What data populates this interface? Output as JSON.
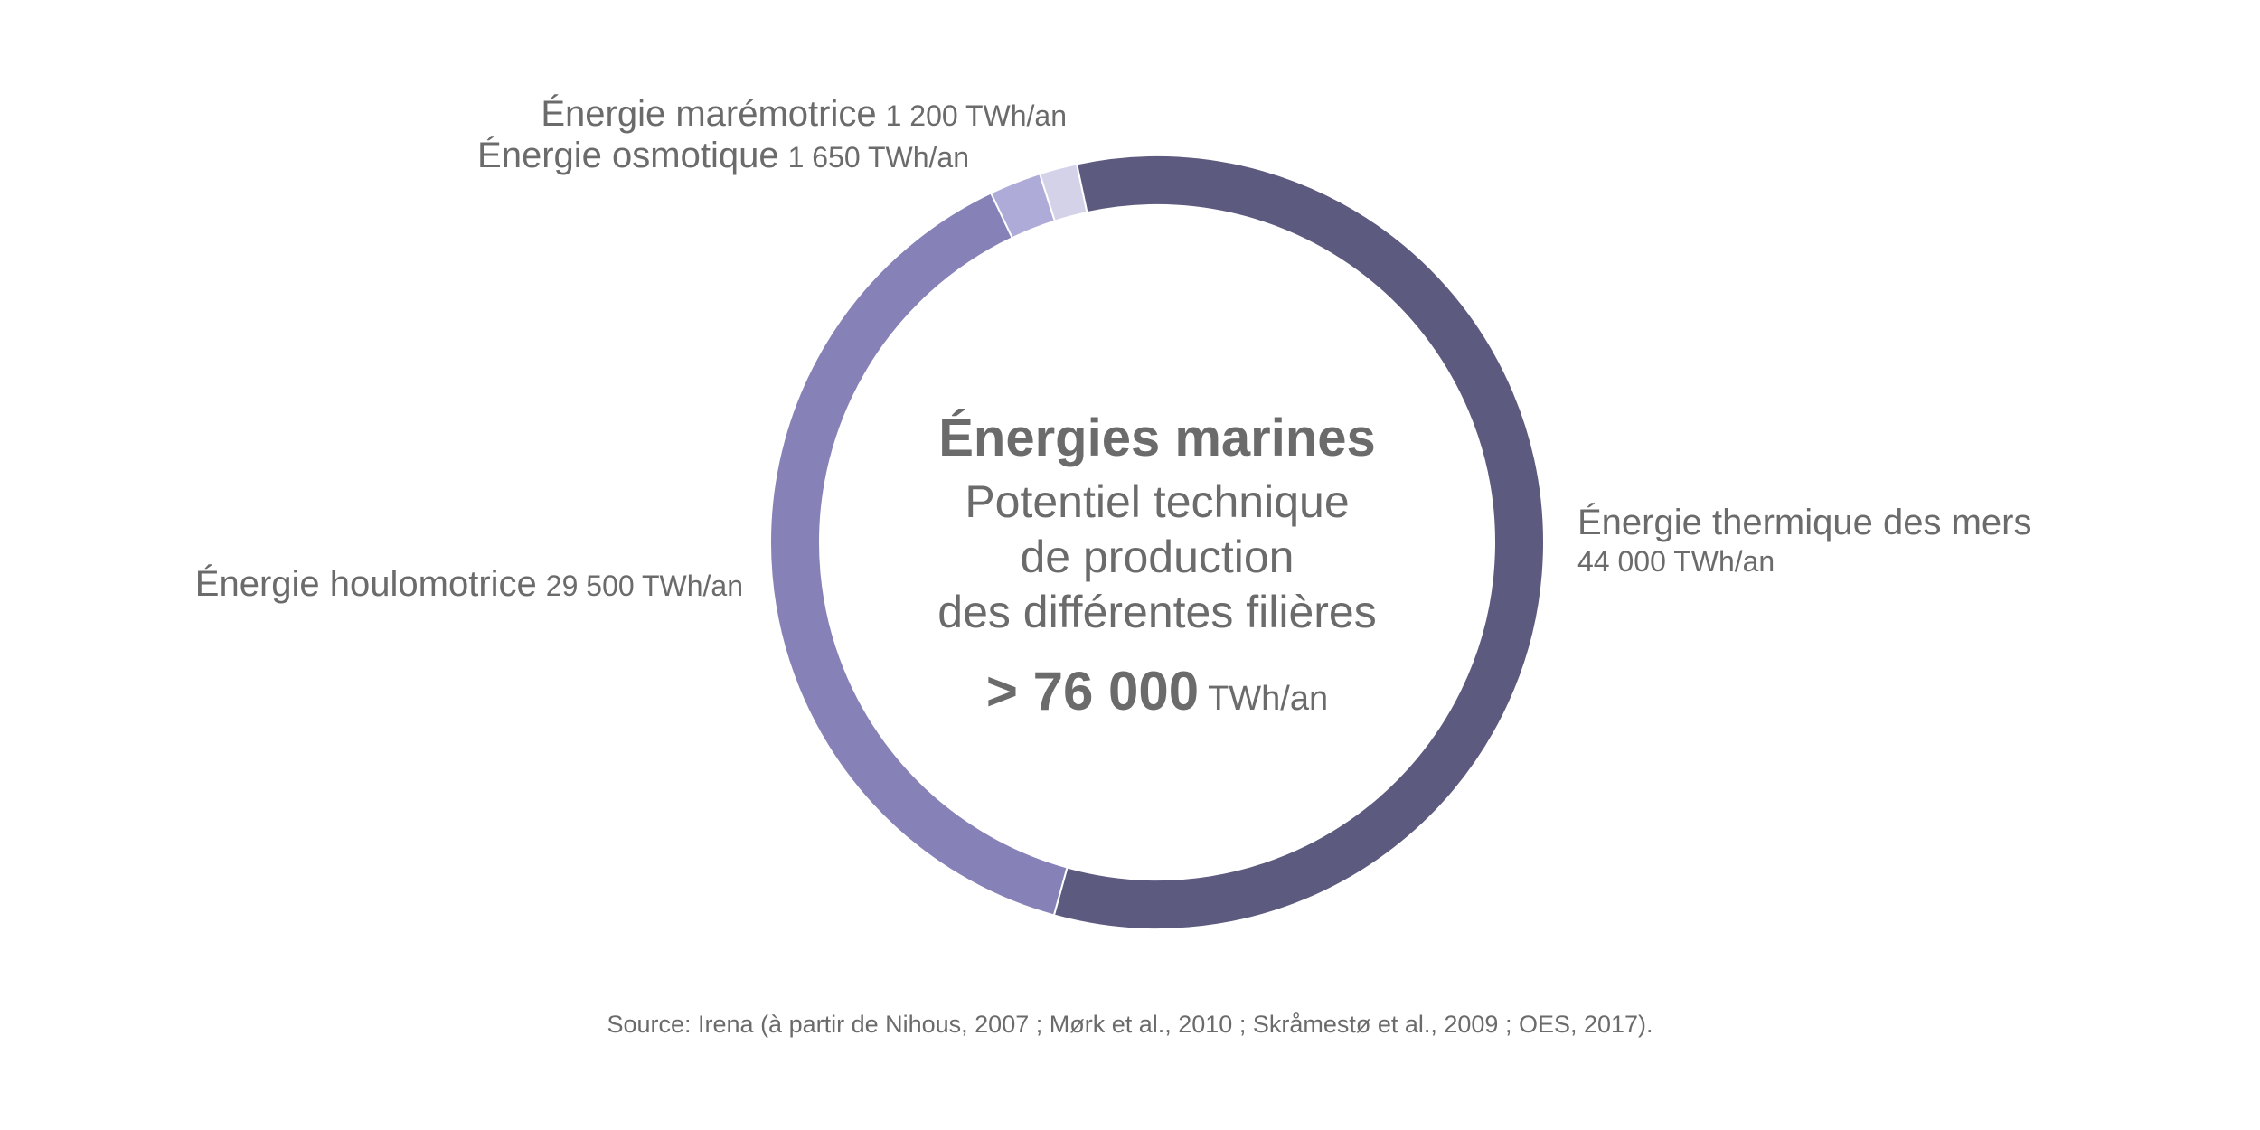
{
  "chart_data": {
    "type": "pie",
    "style": "donut",
    "title": "Énergies marines",
    "subtitle_lines": [
      "Potentiel technique",
      "de production",
      "des différentes filières"
    ],
    "total": {
      "value": "> 76 000",
      "unit": "TWh/an"
    },
    "unit": "TWh/an",
    "slices": [
      {
        "name": "Énergie thermique des mers",
        "value": 44000,
        "value_label": "44 000 TWh/an",
        "color": "#5c5a7e"
      },
      {
        "name": "Énergie houlomotrice",
        "value": 29500,
        "value_label": "29 500 TWh/an",
        "color": "#8682b8"
      },
      {
        "name": "Énergie osmotique",
        "value": 1650,
        "value_label": "1 650 TWh/an",
        "color": "#aeabd8"
      },
      {
        "name": "Énergie marémotrice",
        "value": 1200,
        "value_label": "1 200 TWh/an",
        "color": "#d3d2e9"
      }
    ],
    "legend": "none"
  },
  "source": "Source: Irena (à partir de Nihous, 2007 ; Mørk et al., 2010 ; Skråmestø et al., 2009 ; OES, 2017)."
}
